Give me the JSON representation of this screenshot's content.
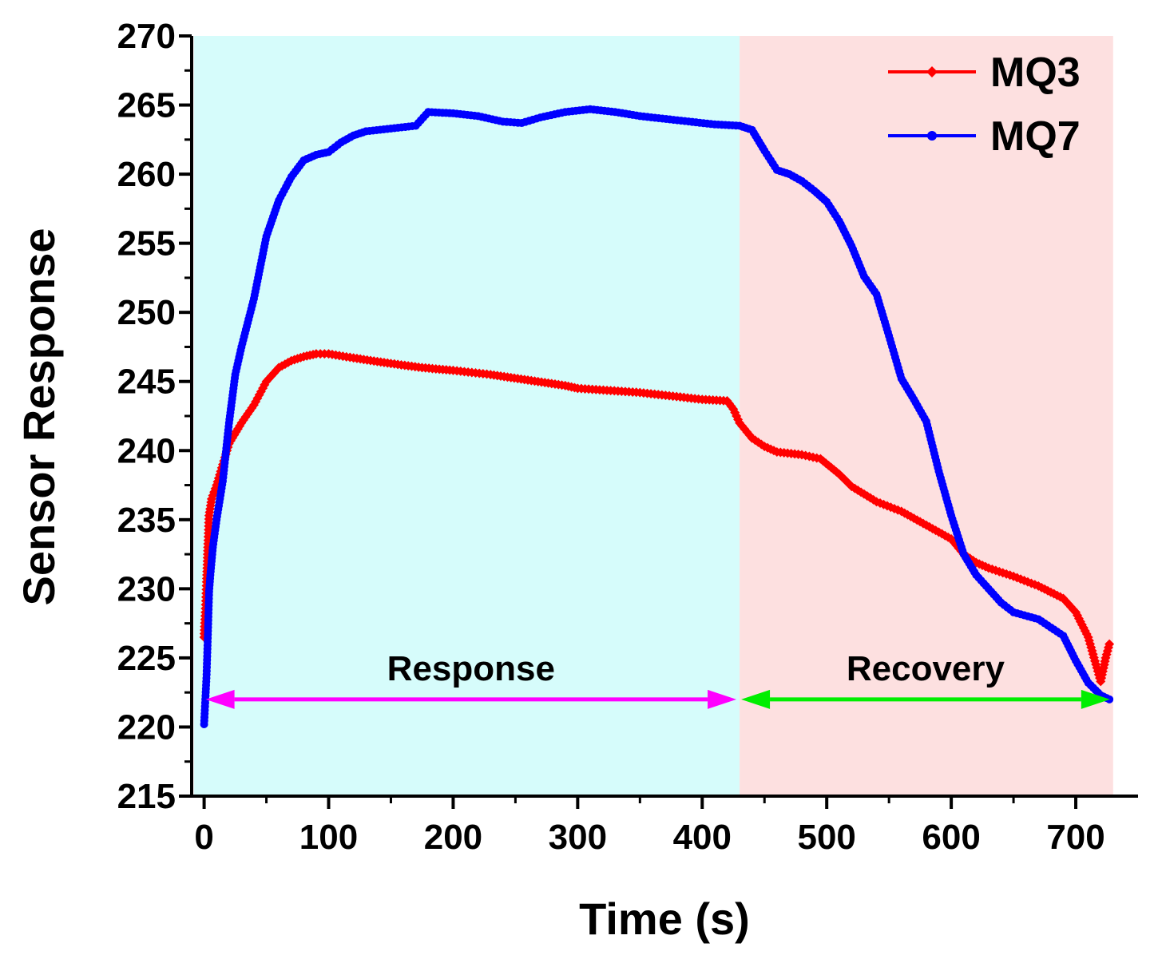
{
  "chart_data": {
    "type": "line",
    "xlabel": "Time (s)",
    "ylabel": "Sensor Response",
    "xlim": [
      -10,
      750
    ],
    "ylim": [
      215,
      270
    ],
    "xticks": [
      0,
      100,
      200,
      300,
      400,
      500,
      600,
      700
    ],
    "yticks": [
      215,
      220,
      225,
      230,
      235,
      240,
      245,
      250,
      255,
      260,
      265,
      270
    ],
    "legend_position": "top-right",
    "regions": [
      {
        "label": "Response",
        "x": [
          -8,
          430
        ],
        "color": "#d6fcfb",
        "arrow_color": "#ff00ff",
        "arrow_y": 222
      },
      {
        "label": "Recovery",
        "x": [
          430,
          730
        ],
        "color": "#fde0e0",
        "arrow_color": "#00ee00",
        "arrow_y": 222
      }
    ],
    "series": [
      {
        "name": "MQ3",
        "color": "#ff0000",
        "marker": "diamond",
        "points": [
          [
            0,
            226.5
          ],
          [
            1,
            228.3
          ],
          [
            2,
            230.5
          ],
          [
            3,
            233
          ],
          [
            4,
            235.3
          ],
          [
            6,
            236.5
          ],
          [
            10,
            237.5
          ],
          [
            15,
            239
          ],
          [
            20,
            240.5
          ],
          [
            30,
            242
          ],
          [
            40,
            243.3
          ],
          [
            50,
            245
          ],
          [
            60,
            246
          ],
          [
            70,
            246.5
          ],
          [
            80,
            246.8
          ],
          [
            90,
            247
          ],
          [
            100,
            247
          ],
          [
            120,
            246.7
          ],
          [
            150,
            246.3
          ],
          [
            175,
            246
          ],
          [
            200,
            245.8
          ],
          [
            230,
            245.5
          ],
          [
            260,
            245.1
          ],
          [
            290,
            244.7
          ],
          [
            300,
            244.5
          ],
          [
            350,
            244.2
          ],
          [
            400,
            243.7
          ],
          [
            420,
            243.6
          ],
          [
            425,
            243
          ],
          [
            430,
            242
          ],
          [
            440,
            240.9
          ],
          [
            450,
            240.3
          ],
          [
            460,
            239.9
          ],
          [
            480,
            239.7
          ],
          [
            495,
            239.4
          ],
          [
            510,
            238.3
          ],
          [
            520,
            237.4
          ],
          [
            540,
            236.3
          ],
          [
            560,
            235.6
          ],
          [
            580,
            234.6
          ],
          [
            600,
            233.6
          ],
          [
            610,
            232.5
          ],
          [
            620,
            231.9
          ],
          [
            630,
            231.5
          ],
          [
            650,
            230.9
          ],
          [
            670,
            230.2
          ],
          [
            690,
            229.3
          ],
          [
            700,
            228.3
          ],
          [
            710,
            226.5
          ],
          [
            720,
            223.3
          ],
          [
            724,
            225
          ],
          [
            727,
            226
          ]
        ]
      },
      {
        "name": "MQ7",
        "color": "#0000ff",
        "marker": "circle",
        "points": [
          [
            0,
            220.2
          ],
          [
            2,
            223.8
          ],
          [
            3,
            226.7
          ],
          [
            4,
            229.8
          ],
          [
            5,
            231
          ],
          [
            7,
            233
          ],
          [
            10,
            235
          ],
          [
            15,
            237.8
          ],
          [
            20,
            242
          ],
          [
            25,
            245.5
          ],
          [
            30,
            247.5
          ],
          [
            40,
            251
          ],
          [
            50,
            255.5
          ],
          [
            60,
            258.1
          ],
          [
            70,
            259.8
          ],
          [
            80,
            261
          ],
          [
            90,
            261.4
          ],
          [
            100,
            261.6
          ],
          [
            110,
            262.3
          ],
          [
            120,
            262.8
          ],
          [
            130,
            263.1
          ],
          [
            150,
            263.3
          ],
          [
            170,
            263.5
          ],
          [
            180,
            264.5
          ],
          [
            200,
            264.4
          ],
          [
            220,
            264.2
          ],
          [
            240,
            263.8
          ],
          [
            255,
            263.7
          ],
          [
            270,
            264.1
          ],
          [
            290,
            264.5
          ],
          [
            310,
            264.7
          ],
          [
            330,
            264.5
          ],
          [
            350,
            264.2
          ],
          [
            380,
            263.9
          ],
          [
            410,
            263.6
          ],
          [
            430,
            263.5
          ],
          [
            440,
            263.2
          ],
          [
            450,
            261.7
          ],
          [
            460,
            260.3
          ],
          [
            470,
            260
          ],
          [
            480,
            259.5
          ],
          [
            490,
            258.8
          ],
          [
            500,
            258
          ],
          [
            510,
            256.6
          ],
          [
            520,
            254.8
          ],
          [
            530,
            252.6
          ],
          [
            540,
            251.3
          ],
          [
            550,
            248.3
          ],
          [
            560,
            245.2
          ],
          [
            570,
            243.7
          ],
          [
            580,
            242.1
          ],
          [
            590,
            238.5
          ],
          [
            600,
            235.3
          ],
          [
            610,
            232.5
          ],
          [
            620,
            231
          ],
          [
            640,
            229
          ],
          [
            650,
            228.3
          ],
          [
            670,
            227.8
          ],
          [
            690,
            226.6
          ],
          [
            700,
            224.8
          ],
          [
            710,
            223.2
          ],
          [
            720,
            222.3
          ],
          [
            727,
            222
          ]
        ]
      }
    ]
  }
}
